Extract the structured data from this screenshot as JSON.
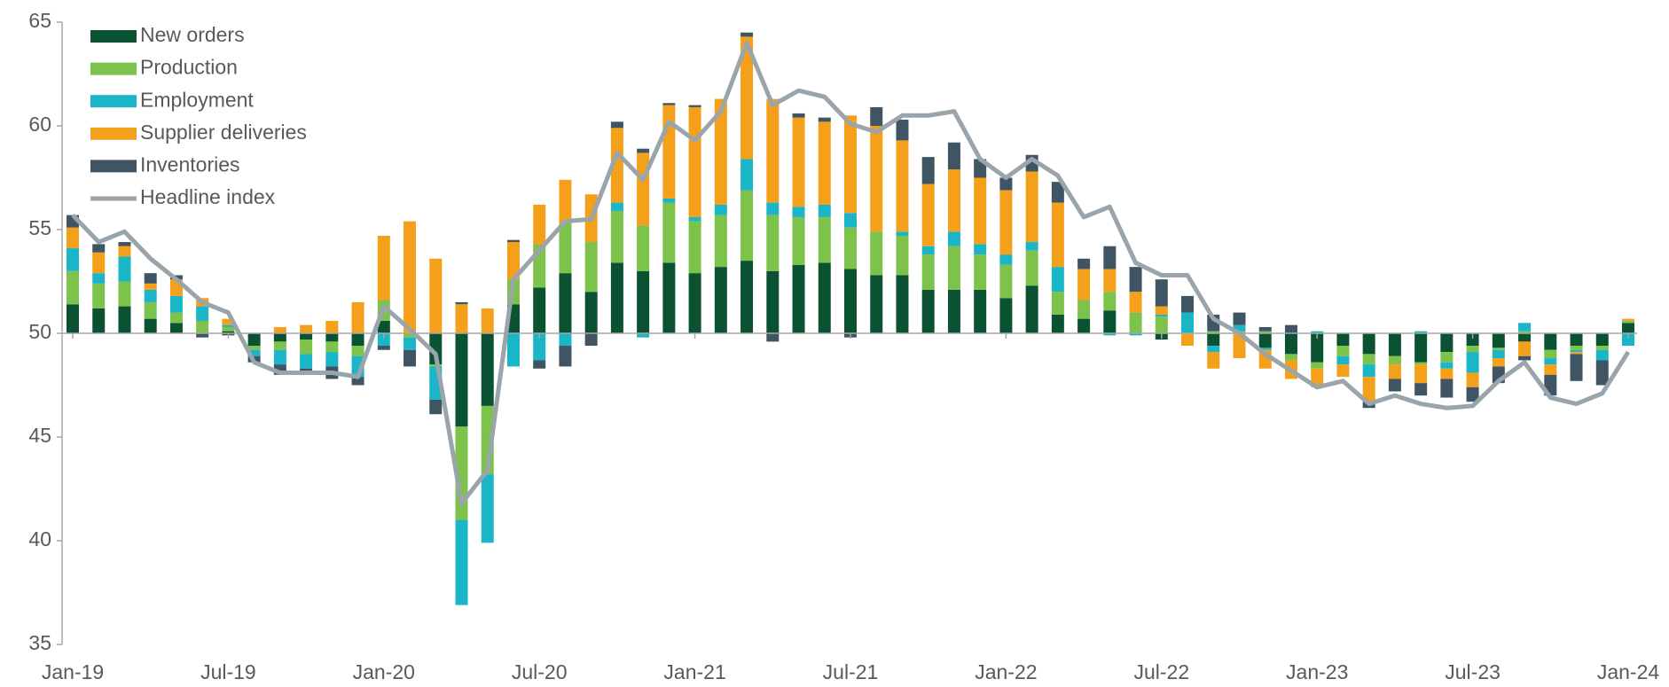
{
  "chart_data": {
    "type": "bar",
    "baseline": 50,
    "categories": [
      "Jan-19",
      null,
      null,
      null,
      null,
      null,
      "Jul-19",
      null,
      null,
      null,
      null,
      null,
      "Jan-20",
      null,
      null,
      null,
      null,
      null,
      "Jul-20",
      null,
      null,
      null,
      null,
      null,
      "Jan-21",
      null,
      null,
      null,
      null,
      null,
      "Jul-21",
      null,
      null,
      null,
      null,
      null,
      "Jan-22",
      null,
      null,
      null,
      null,
      null,
      "Jul-22",
      null,
      null,
      null,
      null,
      null,
      "Jan-23",
      null,
      null,
      null,
      null,
      null,
      "Jul-23",
      null,
      null,
      null,
      null,
      null,
      "Jan-24"
    ],
    "ylim": [
      35,
      65
    ],
    "yticks": [
      35,
      40,
      45,
      50,
      55,
      60,
      65
    ],
    "series": [
      {
        "name": "New orders",
        "color": "#0b5233",
        "values": [
          1.4,
          1.2,
          1.3,
          0.7,
          0.5,
          0,
          0.1,
          -0.6,
          -0.4,
          -0.3,
          -0.4,
          -0.6,
          0.6,
          0,
          -1.5,
          -4.5,
          -3.5,
          1.4,
          2.2,
          2.9,
          2.0,
          3.4,
          3.0,
          3.4,
          2.9,
          3.2,
          3.5,
          3.0,
          3.3,
          3.4,
          3.1,
          2.8,
          2.8,
          2.1,
          2.1,
          2.1,
          1.7,
          2.3,
          0.9,
          0.7,
          1.1,
          0,
          -0.3,
          0,
          -0.6,
          0,
          -0.7,
          -1.0,
          -1.4,
          -0.6,
          -1.0,
          -1.1,
          -1.4,
          -0.9,
          -0.6,
          -0.7,
          -0.4,
          -0.8,
          -0.6,
          -0.6,
          0.5
        ]
      },
      {
        "name": "Production",
        "color": "#7dc24b",
        "values": [
          1.6,
          1.2,
          1.2,
          0.8,
          0.5,
          0.6,
          0.2,
          -0.2,
          -0.4,
          -0.7,
          -0.5,
          -0.5,
          1.0,
          -0.2,
          -0.1,
          -4.5,
          -3.3,
          1.2,
          2.1,
          2.4,
          2.4,
          2.5,
          2.2,
          2.9,
          2.5,
          2.5,
          3.4,
          2.7,
          2.3,
          2.2,
          2.0,
          2.1,
          1.9,
          1.7,
          2.1,
          1.7,
          1.6,
          1.7,
          1.1,
          0.9,
          0.9,
          1.0,
          0.8,
          0,
          0.1,
          0.1,
          0.1,
          -0.3,
          -0.3,
          -0.5,
          -0.5,
          -0.4,
          -0.1,
          -0.5,
          -0.3,
          -0.1,
          0.1,
          -0.4,
          -0.2,
          -0.2,
          0.1
        ]
      },
      {
        "name": "Employment",
        "color": "#1bb5c8",
        "values": [
          1.1,
          0.5,
          1.2,
          0.6,
          0.8,
          0.7,
          0.1,
          -0.3,
          -0.7,
          -0.7,
          -0.7,
          -1.0,
          -0.6,
          -0.6,
          -1.6,
          -4.1,
          -3.3,
          -1.6,
          -1.3,
          -0.6,
          0,
          0.4,
          -0.2,
          0.2,
          0.2,
          0.5,
          1.5,
          0.6,
          0.5,
          0.6,
          0.7,
          0,
          0.2,
          0.4,
          0.7,
          0.5,
          0.5,
          0.4,
          1.2,
          0,
          -0.1,
          -0.1,
          0.1,
          1.0,
          -0.3,
          0.3,
          -0.1,
          0,
          0.1,
          -0.4,
          -0.6,
          0,
          0.1,
          -0.3,
          -1.0,
          -0.4,
          0.4,
          -0.3,
          -0.1,
          -0.5,
          -0.6
        ]
      },
      {
        "name": "Supplier deliveries",
        "color": "#f5a01a",
        "values": [
          1.0,
          1.0,
          0.5,
          0.3,
          0.8,
          0.4,
          0.3,
          0,
          0.3,
          0.4,
          0.6,
          1.5,
          3.1,
          5.4,
          3.6,
          1.4,
          1.2,
          1.8,
          1.9,
          2.1,
          2.3,
          3.6,
          3.5,
          4.5,
          5.3,
          5.1,
          5.9,
          5.0,
          4.3,
          4.0,
          4.7,
          5.1,
          4.4,
          3.0,
          3.0,
          3.2,
          3.1,
          3.4,
          3.1,
          1.5,
          1.1,
          1.0,
          0.4,
          -0.6,
          -0.8,
          -1.2,
          -0.9,
          -0.9,
          -0.9,
          -0.6,
          -1.2,
          -0.7,
          -0.9,
          -0.5,
          -0.7,
          -0.4,
          -0.7,
          -0.5,
          -0.1,
          0,
          0.1
        ]
      },
      {
        "name": "Inventories",
        "color": "#3f5564",
        "values": [
          0.6,
          0.4,
          0.2,
          0.5,
          0.2,
          -0.2,
          -0.1,
          -0.3,
          -0.5,
          -0.3,
          -0.6,
          -0.4,
          -0.2,
          -0.8,
          -0.7,
          0.1,
          0,
          0.1,
          -0.4,
          -1.0,
          -0.6,
          0.3,
          0.2,
          0.1,
          0.1,
          0,
          0.2,
          -0.4,
          0.2,
          0.2,
          -0.2,
          0.9,
          1.0,
          1.3,
          1.3,
          0.9,
          0.6,
          0.8,
          1.0,
          0.5,
          1.1,
          1.2,
          1.3,
          0.8,
          0.8,
          0.6,
          0.2,
          0.4,
          0,
          0,
          -0.3,
          -0.6,
          -0.6,
          -0.9,
          -0.7,
          -0.8,
          -0.2,
          -1.0,
          -1.3,
          -1.2,
          0
        ]
      },
      {
        "name": "Headline index",
        "color": "#9aa5ab",
        "type": "line",
        "values": [
          55.7,
          54.4,
          54.9,
          53.6,
          52.6,
          51.5,
          51.0,
          48.6,
          48.1,
          48.1,
          48.1,
          47.9,
          51.3,
          50.2,
          49.0,
          41.8,
          43.4,
          52.6,
          54.0,
          55.4,
          55.5,
          58.7,
          57.4,
          60.2,
          59.3,
          60.7,
          64.0,
          61.0,
          61.7,
          61.4,
          60.1,
          59.7,
          60.5,
          60.5,
          60.7,
          58.4,
          57.5,
          58.4,
          57.6,
          55.6,
          56.1,
          53.4,
          52.8,
          52.8,
          50.7,
          50.0,
          49.0,
          48.2,
          47.4,
          47.7,
          46.6,
          47.0,
          46.6,
          46.4,
          46.5,
          47.7,
          48.6,
          46.9,
          46.6,
          47.1,
          49.1
        ]
      }
    ]
  }
}
